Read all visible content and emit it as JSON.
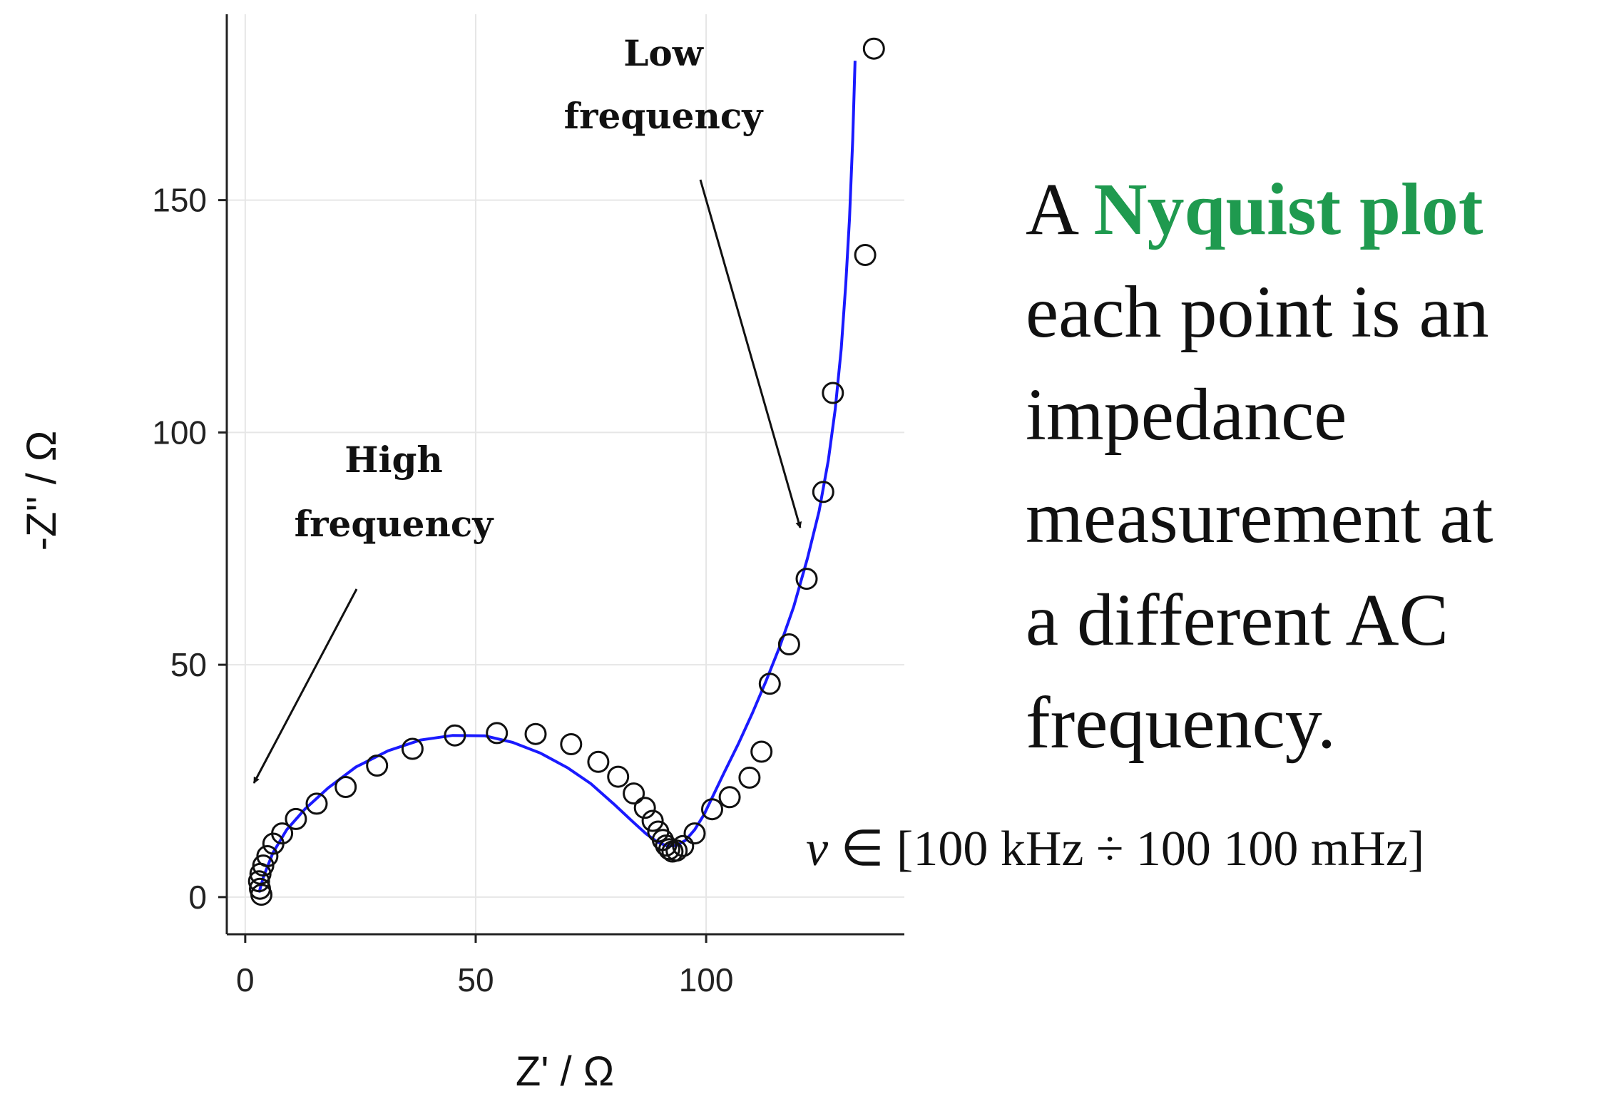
{
  "chart_data": {
    "type": "scatter",
    "xlabel": "Z' /  Ω",
    "ylabel": "-Z'' / Ω",
    "xlim": [
      -4,
      143
    ],
    "ylim": [
      -8,
      190
    ],
    "xticks": [
      0,
      50,
      100
    ],
    "yticks": [
      0,
      50,
      100,
      150
    ],
    "grid": true,
    "colors": {
      "points": "#111111",
      "fit": "#1a1aff",
      "grid": "#e6e6e6"
    },
    "series": [
      {
        "kind": "points",
        "marker": "open-circle",
        "x": [
          3.5,
          3.2,
          3.0,
          3.3,
          3.9,
          4.8,
          6.1,
          8.0,
          11.0,
          15.5,
          21.8,
          28.6,
          36.3,
          45.5,
          54.6,
          63.0,
          70.7,
          76.6,
          80.9,
          84.3,
          86.7,
          88.4,
          89.6,
          90.6,
          91.3,
          92.0,
          92.7,
          93.6,
          95.0,
          97.5,
          101.3,
          105.1,
          109.4,
          112.0,
          113.8,
          118.0,
          121.8,
          125.4,
          127.5,
          134.5,
          136.4
        ],
        "y": [
          0.5,
          1.8,
          3.4,
          5.0,
          6.8,
          8.8,
          11.5,
          13.7,
          16.8,
          20.1,
          23.7,
          28.3,
          31.9,
          34.8,
          35.3,
          35.1,
          32.9,
          29.1,
          25.9,
          22.3,
          19.2,
          16.4,
          14.1,
          12.3,
          11.1,
          10.3,
          9.8,
          10.0,
          11.0,
          13.7,
          18.9,
          21.5,
          25.7,
          31.3,
          45.9,
          54.4,
          68.5,
          87.2,
          108.5,
          138.2,
          182.6
        ]
      },
      {
        "kind": "fit-line",
        "x": [
          3.0,
          4.0,
          6.0,
          9.0,
          13.0,
          18.0,
          24.0,
          31.0,
          38.0,
          45.0,
          52.0,
          58.0,
          64.0,
          70.0,
          75.0,
          80.0,
          84.0,
          87.0,
          89.5,
          91.5,
          93.5,
          95.5,
          97.5,
          99.5,
          101.5,
          104.0,
          107.0,
          110.0,
          113.0,
          116.0,
          119.0,
          122.0,
          124.5,
          126.5,
          128.0,
          129.3,
          130.3,
          131.1,
          131.8,
          132.3
        ],
        "y": [
          1.0,
          4.5,
          9.5,
          14.5,
          19.0,
          23.5,
          28.0,
          31.5,
          33.8,
          34.8,
          34.7,
          33.3,
          31.0,
          27.8,
          24.4,
          20.0,
          16.3,
          13.6,
          11.8,
          11.0,
          11.1,
          12.2,
          14.5,
          17.7,
          21.8,
          27.0,
          33.0,
          39.5,
          46.5,
          54.0,
          62.5,
          73.0,
          83.0,
          94.0,
          105.0,
          118.0,
          132.0,
          146.0,
          163.0,
          180.0
        ]
      }
    ],
    "annotations": [
      {
        "text_lines": [
          "High",
          "frequency"
        ],
        "target": "high-frequency end of the arc"
      },
      {
        "text_lines": [
          "Low",
          "frequency"
        ],
        "target": "low-frequency tail"
      }
    ]
  },
  "side_text": {
    "line1_prefix": "A ",
    "line1_highlight": "Nyquist plot",
    "lines": [
      "each point is an",
      "impedance",
      "measurement at",
      "a different AC",
      "frequency."
    ]
  },
  "frequency_range": {
    "symbol": "ν",
    "text": " ∈ [100 kHz  ÷ 100 100 mHz]"
  }
}
